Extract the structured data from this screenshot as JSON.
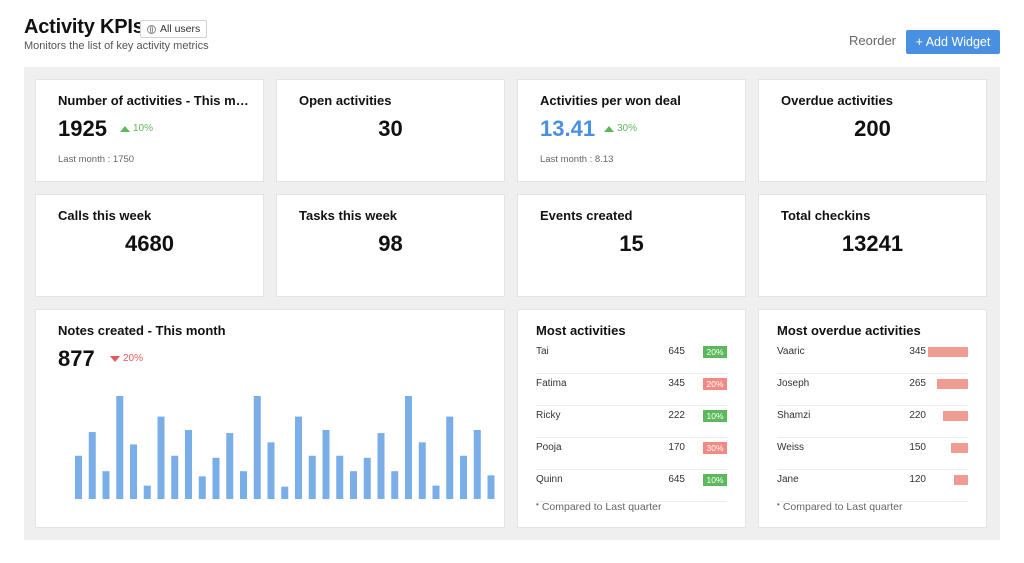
{
  "header": {
    "title": "Activity KPIs",
    "users_filter": "All users",
    "subtitle": "Monitors the list of key activity metrics",
    "reorder_label": "Reorder",
    "add_widget_label": "+ Add Widget"
  },
  "colors": {
    "accent": "#4a90e2",
    "positive": "#5cb85c",
    "negative": "#e25b5b",
    "bar_blue": "#7aaee8",
    "bar_red": "#ef9a93"
  },
  "kpis": {
    "activities": {
      "title": "Number of activities - This mo...",
      "value": "1925",
      "trend": "10%",
      "last_month": "Last month : 1750"
    },
    "open": {
      "title": "Open activities",
      "value": "30"
    },
    "per_won": {
      "title": "Activities per won deal",
      "value": "13.41",
      "trend": "30%",
      "last_month": "Last month : 8.13"
    },
    "overdue": {
      "title": "Overdue activities",
      "value": "200"
    },
    "calls": {
      "title": "Calls this week",
      "value": "4680"
    },
    "tasks": {
      "title": "Tasks this week",
      "value": "98"
    },
    "events": {
      "title": "Events created",
      "value": "15"
    },
    "checkins": {
      "title": "Total checkins",
      "value": "13241"
    }
  },
  "notes": {
    "title": "Notes created - This month",
    "value": "877",
    "trend": "20%"
  },
  "chart_data": {
    "type": "bar",
    "values": [
      42,
      65,
      27,
      100,
      53,
      13,
      80,
      42,
      67,
      22,
      40,
      64,
      27,
      100,
      55,
      12,
      80,
      42,
      67,
      42,
      27,
      40,
      64,
      27,
      100,
      55,
      13,
      80,
      42,
      67,
      23
    ],
    "title": "",
    "xlabel": "",
    "ylabel": ""
  },
  "most_activities": {
    "title": "Most activities",
    "rows": [
      {
        "name": "Tai",
        "value": "645",
        "pct": "20%",
        "color": "#5cb85c"
      },
      {
        "name": "Fatima",
        "value": "345",
        "pct": "20%",
        "color": "#ef8b84"
      },
      {
        "name": "Ricky",
        "value": "222",
        "pct": "10%",
        "color": "#5cb85c"
      },
      {
        "name": "Pooja",
        "value": "170",
        "pct": "30%",
        "color": "#ef8b84"
      },
      {
        "name": "Quinn",
        "value": "645",
        "pct": "10%",
        "color": "#5cb85c"
      }
    ],
    "footnote": "Compared to Last quarter"
  },
  "most_overdue": {
    "title": "Most overdue activities",
    "rows": [
      {
        "name": "Vaaric",
        "value": "345",
        "bar": 345
      },
      {
        "name": "Joseph",
        "value": "265",
        "bar": 265
      },
      {
        "name": "Shamzi",
        "value": "220",
        "bar": 220
      },
      {
        "name": "Weiss",
        "value": "150",
        "bar": 150
      },
      {
        "name": "Jane",
        "value": "120",
        "bar": 120
      }
    ],
    "footnote": "Compared to Last quarter"
  }
}
